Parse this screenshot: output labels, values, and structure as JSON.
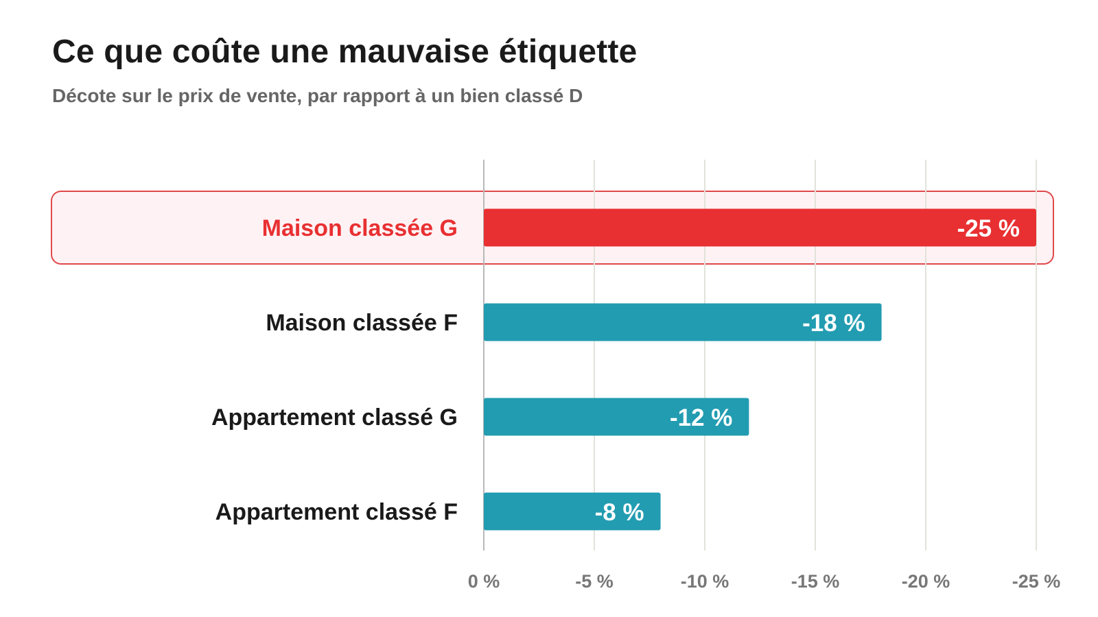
{
  "header": {
    "title": "Ce que coûte une mauvaise étiquette",
    "subtitle": "Décote sur le prix de vente, par rapport à un bien classé D"
  },
  "colors": {
    "default_bar": "#229cb1",
    "highlight_bar": "#e83032",
    "highlight_bg": "#fff2f4",
    "highlight_border": "#e0484a",
    "category_text": "#1a1a1a",
    "highlight_text": "#e83032",
    "tick_text": "#777777",
    "grid": "#e2e2da",
    "axis": "#b8b8b8",
    "value_text": "#ffffff"
  },
  "chart_data": {
    "type": "bar",
    "orientation": "horizontal",
    "title": "Ce que coûte une mauvaise étiquette",
    "subtitle": "Décote sur le prix de vente, par rapport à un bien classé D",
    "categories": [
      "Maison classée G",
      "Maison classée F",
      "Appartement classé G",
      "Appartement classé F"
    ],
    "values": [
      -25,
      -18,
      -12,
      -8
    ],
    "value_labels": [
      "-25 %",
      "-18 %",
      "-12 %",
      "-8 %"
    ],
    "highlighted_category": "Maison classée G",
    "xlim": [
      0,
      -25
    ],
    "xticks": [
      0,
      -5,
      -10,
      -15,
      -20,
      -25
    ],
    "xtick_labels": [
      "0 %",
      "-5 %",
      "-10 %",
      "-15 %",
      "-20 %",
      "-25 %"
    ],
    "xlabel": "",
    "ylabel": "",
    "grid": "vertical"
  }
}
